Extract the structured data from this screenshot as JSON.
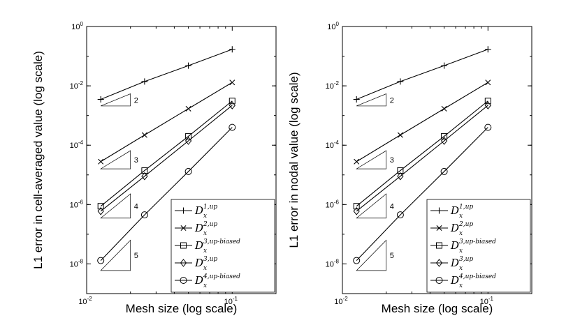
{
  "chart_data": [
    {
      "type": "line",
      "xscale": "log",
      "yscale": "log",
      "xlim": [
        0.01,
        0.2
      ],
      "ylim": [
        1e-09,
        1
      ],
      "xlabel": "Mesh size (log scale)",
      "ylabel": "L1 error in cell-averaged value (log scale)",
      "x_ticks": [
        "10^-2",
        "10^-1"
      ],
      "y_ticks": [
        "10^0",
        "10^-2",
        "10^-4",
        "10^-6",
        "10^-8"
      ],
      "legend_position": "bottom-right",
      "grid": false,
      "x": [
        0.0125,
        0.025,
        0.05,
        0.1
      ],
      "series": [
        {
          "name": "D_x^{1,up}",
          "marker": "plus",
          "values": [
            0.0035,
            0.014,
            0.048,
            0.17
          ]
        },
        {
          "name": "D_x^{2,up}",
          "marker": "cross",
          "values": [
            2.8e-05,
            0.00022,
            0.0017,
            0.013
          ]
        },
        {
          "name": "D_x^{3,up-biased}",
          "marker": "square",
          "values": [
            8.8e-07,
            1.4e-05,
            0.0002,
            0.0031
          ]
        },
        {
          "name": "D_x^{3,up}",
          "marker": "diamond",
          "values": [
            6e-07,
            9e-06,
            0.00014,
            0.0022
          ]
        },
        {
          "name": "D_x^{4,up-biased}",
          "marker": "circle",
          "values": [
            1.3e-08,
            4.5e-07,
            1.3e-05,
            0.0004
          ]
        }
      ],
      "slope_labels": [
        "2",
        "3",
        "4",
        "5"
      ]
    },
    {
      "type": "line",
      "xscale": "log",
      "yscale": "log",
      "xlim": [
        0.01,
        0.2
      ],
      "ylim": [
        1e-09,
        1
      ],
      "xlabel": "Mesh size (log scale)",
      "ylabel": "L1 error in nodal value (log scale)",
      "x_ticks": [
        "10^-2",
        "10^-1"
      ],
      "y_ticks": [
        "10^0",
        "10^-2",
        "10^-4",
        "10^-6",
        "10^-8"
      ],
      "legend_position": "bottom-right",
      "grid": false,
      "x": [
        0.0125,
        0.025,
        0.05,
        0.1
      ],
      "series": [
        {
          "name": "D_x^{1,up}",
          "marker": "plus",
          "values": [
            0.0035,
            0.014,
            0.048,
            0.17
          ]
        },
        {
          "name": "D_x^{2,up}",
          "marker": "cross",
          "values": [
            2.8e-05,
            0.00022,
            0.0017,
            0.013
          ]
        },
        {
          "name": "D_x^{3,up-biased}",
          "marker": "square",
          "values": [
            8.8e-07,
            1.4e-05,
            0.0002,
            0.0031
          ]
        },
        {
          "name": "D_x^{3,up}",
          "marker": "diamond",
          "values": [
            6e-07,
            9e-06,
            0.00014,
            0.0022
          ]
        },
        {
          "name": "D_x^{4,up-biased}",
          "marker": "circle",
          "values": [
            1.3e-08,
            4.5e-07,
            1.3e-05,
            0.0004
          ]
        }
      ],
      "slope_labels": [
        "2",
        "3",
        "4",
        "5"
      ]
    }
  ]
}
